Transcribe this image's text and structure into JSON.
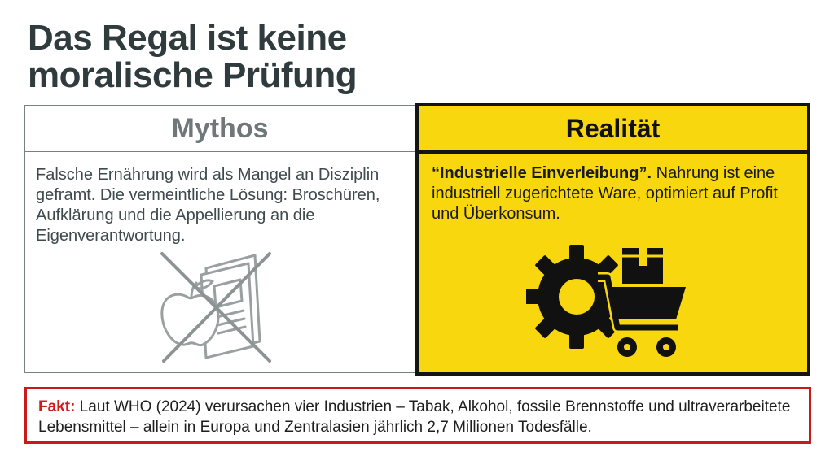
{
  "title": {
    "line1": "Das Regal ist keine",
    "line2": "moralische Prüfung"
  },
  "mythos": {
    "heading": "Mythos",
    "text": "Falsche Ernährung wird als Mangel an Disziplin geframt. Die vermeintliche Lösung: Broschüren, Aufklärung und die Appellierung an die Eigenverantwortung.",
    "icon": "crossed-out-apple-and-brochure-icon"
  },
  "realitaet": {
    "heading": "Realität",
    "text_bold": "“Industrielle Einverleibung”.",
    "text_rest": " Nahrung ist eine industriell zugerichtete Ware, optimiert auf Profit und Überkonsum.",
    "icon": "gear-shopping-cart-box-icon",
    "background_color": "#f9d70f"
  },
  "fact": {
    "label": "Fakt:",
    "text": " Laut WHO (2024) verursachen vier Industrien – Tabak, Alkohol, fossile Brennstoffe und ultraverarbeitete Lebensmittel – allein in Europa und Zentralasien jährlich 2,7 Millionen Todesfälle.",
    "border_color": "#c91a1a"
  }
}
